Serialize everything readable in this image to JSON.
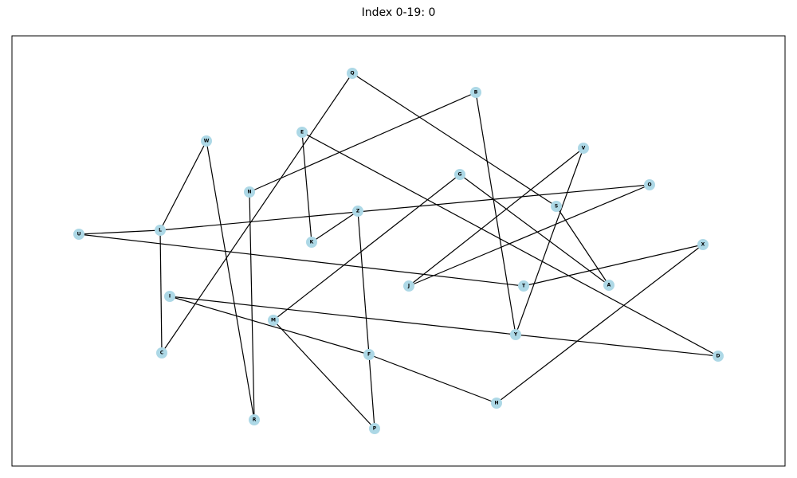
{
  "title": "Index 0-19: 0",
  "style": {
    "node_color": "#add8e6",
    "edge_color": "#000000",
    "frame_color": "#000000"
  },
  "nodes": [
    {
      "id": "A"
    },
    {
      "id": "B"
    },
    {
      "id": "C"
    },
    {
      "id": "D"
    },
    {
      "id": "E"
    },
    {
      "id": "F"
    },
    {
      "id": "G"
    },
    {
      "id": "H"
    },
    {
      "id": "I"
    },
    {
      "id": "J"
    },
    {
      "id": "K"
    },
    {
      "id": "L"
    },
    {
      "id": "M"
    },
    {
      "id": "N"
    },
    {
      "id": "O"
    },
    {
      "id": "P"
    },
    {
      "id": "Q"
    },
    {
      "id": "R"
    },
    {
      "id": "S"
    },
    {
      "id": "T"
    },
    {
      "id": "U"
    },
    {
      "id": "V"
    },
    {
      "id": "W"
    },
    {
      "id": "X"
    },
    {
      "id": "Y"
    },
    {
      "id": "Z"
    }
  ],
  "edges": [
    [
      "Q",
      "C"
    ],
    [
      "Q",
      "S"
    ],
    [
      "S",
      "A"
    ],
    [
      "G",
      "A"
    ],
    [
      "G",
      "M"
    ],
    [
      "M",
      "P"
    ],
    [
      "F",
      "P"
    ],
    [
      "F",
      "H"
    ],
    [
      "F",
      "I"
    ],
    [
      "I",
      "Y"
    ],
    [
      "Y",
      "D"
    ],
    [
      "Y",
      "B"
    ],
    [
      "Y",
      "V"
    ],
    [
      "V",
      "J"
    ],
    [
      "J",
      "O"
    ],
    [
      "O",
      "L"
    ],
    [
      "L",
      "W"
    ],
    [
      "L",
      "C"
    ],
    [
      "W",
      "R"
    ],
    [
      "R",
      "N"
    ],
    [
      "N",
      "B"
    ],
    [
      "E",
      "K"
    ],
    [
      "E",
      "D"
    ],
    [
      "K",
      "Z"
    ],
    [
      "Z",
      "F"
    ],
    [
      "U",
      "L"
    ],
    [
      "U",
      "T"
    ],
    [
      "T",
      "X"
    ],
    [
      "X",
      "H"
    ]
  ]
}
